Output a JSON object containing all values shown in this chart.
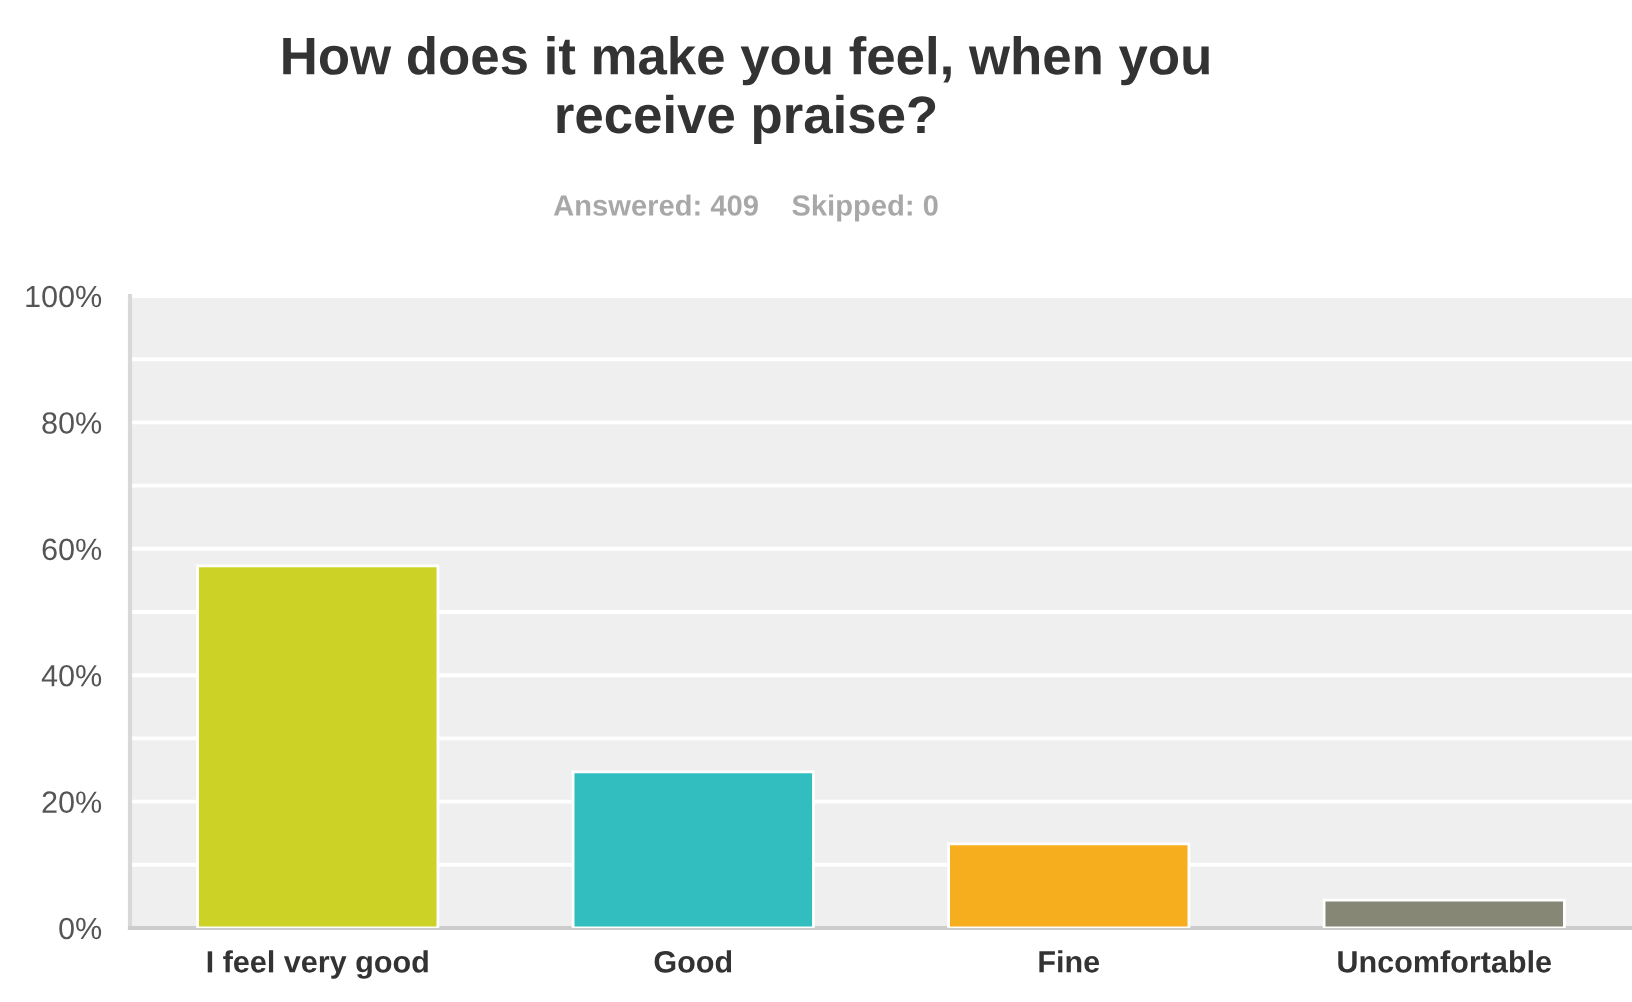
{
  "chart_data": {
    "type": "bar",
    "title": "How does it make you feel, when you\nreceive praise?",
    "subtitle": "Answered: 409    Skipped: 0",
    "categories": [
      "I feel very good",
      "Good",
      "Fine",
      "Uncomfortable"
    ],
    "values": [
      57.3,
      24.7,
      13.3,
      4.4
    ],
    "colors": [
      "#cdd326",
      "#32bdbf",
      "#f6ae1f",
      "#868775"
    ],
    "ylim": [
      0,
      100
    ],
    "yticks": [
      {
        "value": 0,
        "label": "0%"
      },
      {
        "value": 10,
        "label": null
      },
      {
        "value": 20,
        "label": "20%"
      },
      {
        "value": 30,
        "label": null
      },
      {
        "value": 40,
        "label": "40%"
      },
      {
        "value": 50,
        "label": null
      },
      {
        "value": 60,
        "label": "60%"
      },
      {
        "value": 70,
        "label": null
      },
      {
        "value": 80,
        "label": "80%"
      },
      {
        "value": 90,
        "label": null
      },
      {
        "value": 100,
        "label": "100%"
      }
    ],
    "grid": "y",
    "legend": false
  }
}
